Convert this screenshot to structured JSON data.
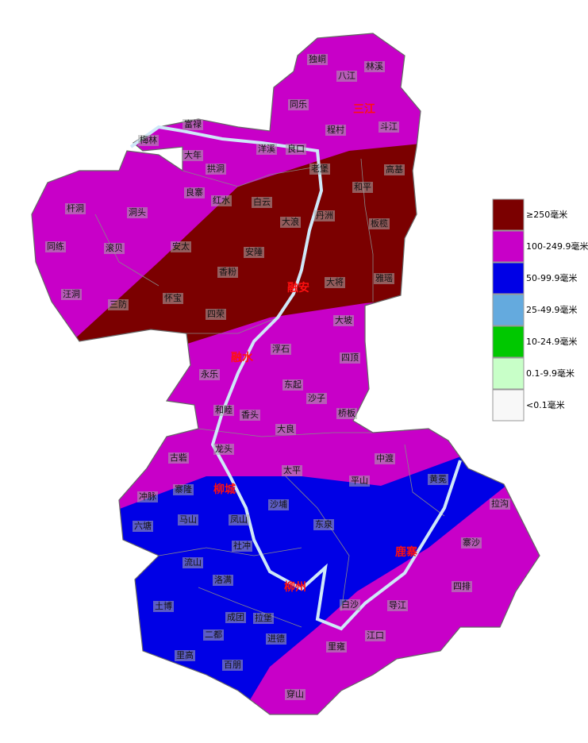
{
  "legend": {
    "items": [
      {
        "label": "≥250毫米",
        "color": "#7b0000"
      },
      {
        "label": "100-249.9毫米",
        "color": "#c800c8"
      },
      {
        "label": "50-99.9毫米",
        "color": "#0000e6"
      },
      {
        "label": "25-49.9毫米",
        "color": "#64aade"
      },
      {
        "label": "10-24.9毫米",
        "color": "#00c800"
      },
      {
        "label": "0.1-9.9毫米",
        "color": "#c8ffc8"
      },
      {
        "label": "<0.1毫米",
        "color": "#f8f8f8"
      }
    ]
  },
  "counties": [
    "三江",
    "融安",
    "融水",
    "柳城",
    "鹿寨",
    "柳州"
  ],
  "towns": [
    "独峒",
    "林溪",
    "八江",
    "同乐",
    "程村",
    "斗江",
    "富禄",
    "梅林",
    "洋溪",
    "良口",
    "大年",
    "拱洞",
    "老堡",
    "高基",
    "和平",
    "良寨",
    "红水",
    "白云",
    "杆洞",
    "洞头",
    "丹洲",
    "大浪",
    "板榄",
    "同练",
    "滚贝",
    "安太",
    "安陲",
    "香粉",
    "大将",
    "雅瑶",
    "汪洞",
    "三防",
    "怀宝",
    "四荣",
    "大坡",
    "浮石",
    "四顶",
    "永乐",
    "东起",
    "沙子",
    "和睦",
    "桥板",
    "香头",
    "大良",
    "龙头",
    "古砦",
    "中渡",
    "太平",
    "平山",
    "黄冕",
    "寨隆",
    "冲脉",
    "沙埔",
    "拉沟",
    "马山",
    "凤山",
    "东泉",
    "六塘",
    "社冲",
    "寨沙",
    "流山",
    "洛满",
    "四排",
    "土博",
    "白沙",
    "导江",
    "成团",
    "拉堡",
    "二都",
    "江口",
    "进德",
    "里雍",
    "里高",
    "百朋",
    "穿山"
  ]
}
